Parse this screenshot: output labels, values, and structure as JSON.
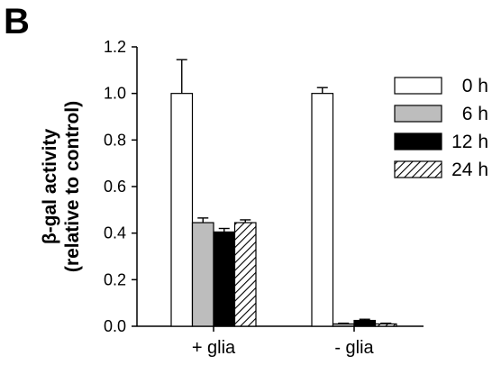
{
  "panel_label": "B",
  "chart_data": {
    "type": "bar",
    "categories": [
      "+ glia",
      "- glia"
    ],
    "series": [
      {
        "name": "0 h",
        "values": [
          1.0,
          1.0
        ],
        "errors": [
          0.145,
          0.025
        ],
        "fill": "#ffffff"
      },
      {
        "name": "6 h",
        "values": [
          0.445,
          0.01
        ],
        "errors": [
          0.02,
          0.003
        ],
        "fill": "#bdbdbd"
      },
      {
        "name": "12 h",
        "values": [
          0.405,
          0.025
        ],
        "errors": [
          0.015,
          0.005
        ],
        "fill": "#000000"
      },
      {
        "name": "24 h",
        "values": [
          0.445,
          0.01
        ],
        "errors": [
          0.012,
          0.003
        ],
        "fill": "hatch"
      }
    ],
    "ylabel_lines": [
      "β-gal activity",
      "(relative to control)"
    ],
    "yticks": [
      "0.0",
      "0.2",
      "0.4",
      "0.6",
      "0.8",
      "1.0",
      "1.2"
    ],
    "ylim": [
      0,
      1.2
    ],
    "legend_position": "right",
    "grid": false
  }
}
